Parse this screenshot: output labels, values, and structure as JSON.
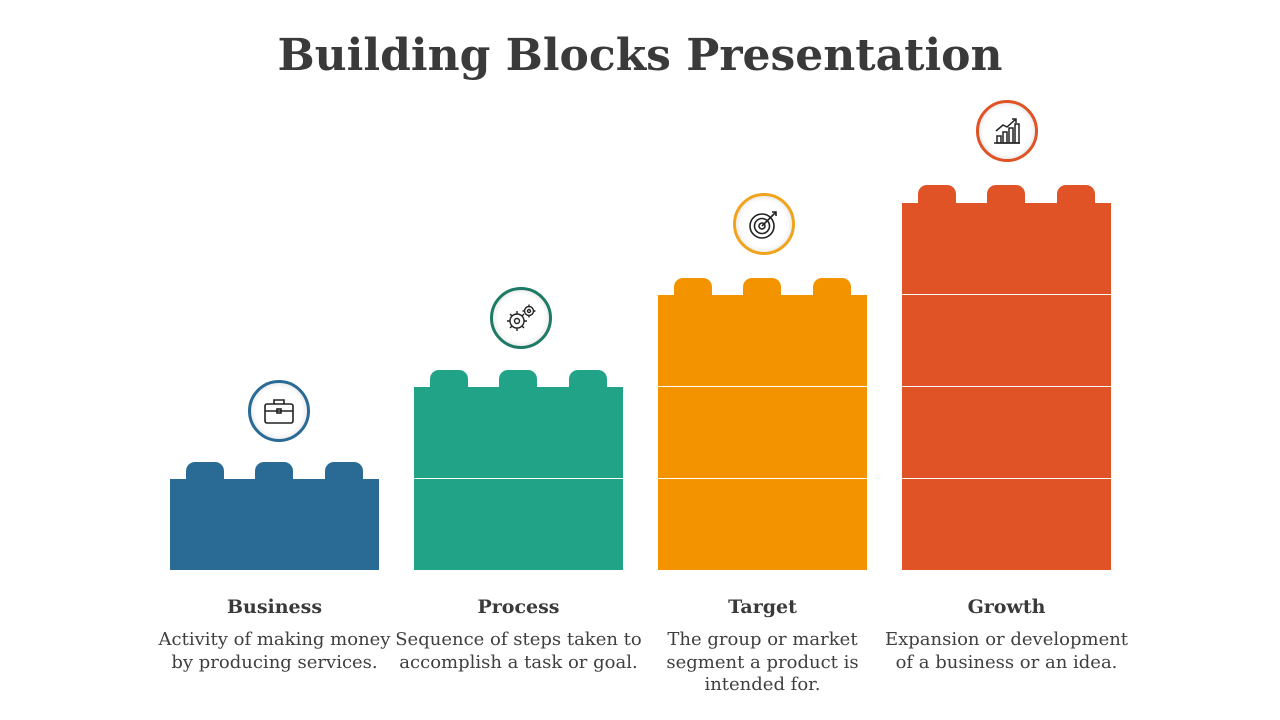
{
  "title": "Building Blocks Presentation",
  "colors": {
    "business": "#2a6b96",
    "process": "#20a386",
    "target": "#f39300",
    "growth": "#e05327",
    "process_ring": "#1d7a64",
    "target_ring": "#f0a31c",
    "text": "#3a3a3a"
  },
  "items": [
    {
      "label": "Business",
      "description": "Activity of making money by producing services.",
      "icon": "briefcase-icon",
      "blocks": 1
    },
    {
      "label": "Process",
      "description": "Sequence of steps taken to accomplish a task or goal.",
      "icon": "gears-icon",
      "blocks": 2
    },
    {
      "label": "Target",
      "description": "The group or market segment a product is intended for.",
      "icon": "target-icon",
      "blocks": 3
    },
    {
      "label": "Growth",
      "description": "Expansion or development of a business or an idea.",
      "icon": "growth-chart-icon",
      "blocks": 4
    }
  ]
}
